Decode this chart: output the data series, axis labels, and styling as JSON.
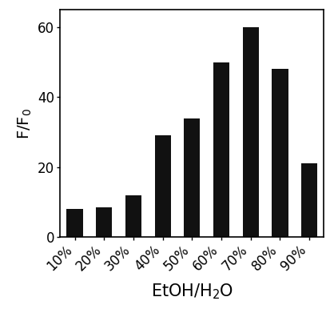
{
  "categories": [
    "10%",
    "20%",
    "30%",
    "40%",
    "50%",
    "60%",
    "70%",
    "80%",
    "90%"
  ],
  "values": [
    8,
    8.5,
    12,
    29,
    34,
    50,
    60,
    48,
    21
  ],
  "bar_color": "#111111",
  "bar_width": 0.55,
  "ylabel": "F/F$_0$",
  "xlabel": "EtOH/H$_2$O",
  "ylim": [
    0,
    65
  ],
  "yticks": [
    0,
    20,
    40,
    60
  ],
  "background_color": "#ffffff",
  "xlabel_fontsize": 15,
  "ylabel_fontsize": 14,
  "tick_fontsize": 12,
  "xlabel_labelpad": 8
}
